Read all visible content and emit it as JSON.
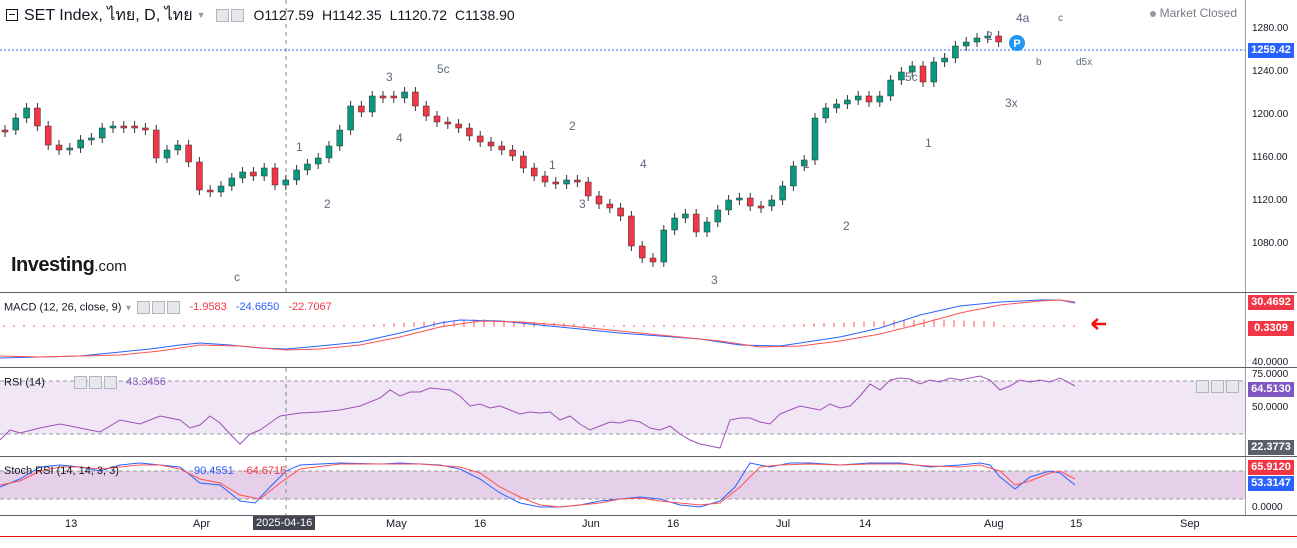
{
  "header": {
    "symbol": "SET Index, ไทย, D, ไทย",
    "open": "O1127.59",
    "high": "H1142.35",
    "low": "L1120.72",
    "close": "C1138.90",
    "market_status": "Market Closed"
  },
  "brand": {
    "logo": "Investing",
    "suffix": ".com"
  },
  "price_axis": {
    "ticks": [
      "1280.00",
      "1240.00",
      "1200.00",
      "1160.00",
      "1120.00",
      "1080.00"
    ],
    "current_price": "1259.42",
    "current_color": "#2962ff"
  },
  "macd": {
    "title": "MACD (12, 26, close, 9)",
    "v1": "-1.9583",
    "v2": "-24.6650",
    "v3": "-22.7067",
    "axis_tick": "40.0000",
    "badge_top": "30.4692",
    "badge_bottom": "0.3309"
  },
  "rsi": {
    "title": "RSI (14)",
    "value": "43.3456",
    "ticks": [
      "75.0000",
      "50.0000"
    ],
    "badge": "64.5130",
    "badge_low": "22.3773"
  },
  "stoch": {
    "title": "Stoch RSI (14, 14, 3, 3)",
    "k": "90.4551",
    "d": "-64.6715",
    "axis_tick": "0.0000",
    "badge_k": "65.9120",
    "badge_d": "53.3147"
  },
  "time_axis": {
    "labels": [
      "13",
      "Apr",
      "May",
      "16",
      "Jun",
      "16",
      "Jul",
      "14",
      "Aug",
      "15",
      "Sep"
    ],
    "crosshair_date": "2025-04-16"
  },
  "wave_labels": [
    "1",
    "2",
    "3",
    "4",
    "5c",
    "c",
    "1",
    "2",
    "3",
    "4",
    "1",
    "2",
    "3",
    "5c",
    "1",
    "2",
    "3x",
    "4a",
    "b",
    "c",
    "d5x",
    "a",
    "b",
    "c"
  ],
  "indicator": {
    "pivot_badge": "P"
  },
  "colors": {
    "up": "#089981",
    "down": "#f23645",
    "macd": "#2962ff",
    "signal": "#ff5252",
    "rsi": "#7e57c2"
  }
}
